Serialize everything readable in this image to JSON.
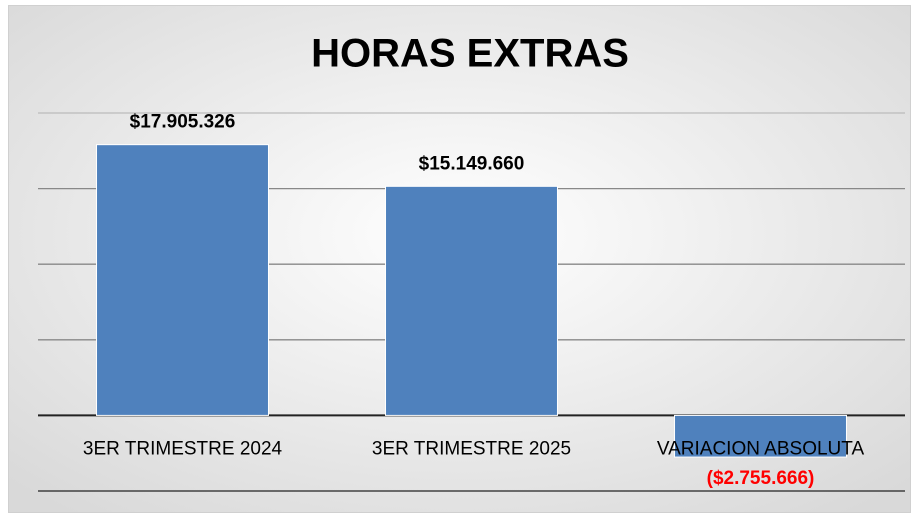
{
  "chart_data": {
    "type": "bar",
    "title": "HORAS EXTRAS",
    "categories": [
      "3ER TRIMESTRE 2024",
      "3ER TRIMESTRE 2025",
      "VARIACION ABSOLUTA"
    ],
    "values": [
      17905326,
      15149660,
      -2755666
    ],
    "value_labels": [
      "$17.905.326",
      "$15.149.660",
      "($2.755.666)"
    ],
    "color": "#4f81bd",
    "label_color": "#000000",
    "negative_label_color": "#ff0000",
    "ylim": [
      -5000000,
      20000000
    ],
    "yticks": [
      -5000000,
      0,
      5000000,
      10000000,
      15000000,
      20000000
    ],
    "grid": true
  }
}
